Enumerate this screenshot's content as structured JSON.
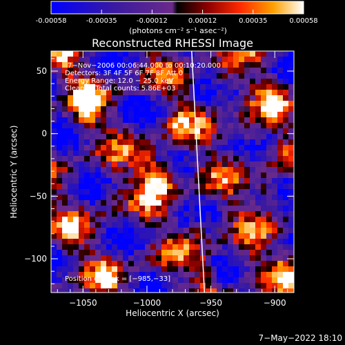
{
  "colorbar": {
    "ticks": [
      "-0.00058",
      "-0.00035",
      "-0.00012",
      "0.00012",
      "0.00035",
      "0.00058"
    ],
    "units": "(photons cm⁻² s⁻¹ asec⁻²)"
  },
  "chart_data": {
    "type": "heatmap",
    "title": "Reconstructed RHESSI Image",
    "xlabel": "Heliocentric X (arcsec)",
    "ylabel": "Heliocentric Y (arcsec)",
    "xlim": [
      -1075,
      -885
    ],
    "ylim": [
      -127,
      66
    ],
    "xticks": [
      -1050,
      -1000,
      -950,
      -900
    ],
    "yticks": [
      50,
      0,
      -50,
      -100
    ],
    "xtick_labels": [
      "−1050",
      "−1000",
      "−950",
      "−900"
    ],
    "ytick_labels": [
      "50",
      "0",
      "−50",
      "−100"
    ],
    "colorscale": {
      "min": -0.00058,
      "max": 0.00058
    },
    "annotations": [
      "7−Nov−2006 00:06:44.000 to 00:10:20.000",
      "Detectors: 3F 4F 5F 6F 7F 8F Att 0",
      "Energy Range: 12.0 − 25.0 keV",
      "Clean     Total counts: 5.86E+03"
    ],
    "peak_label": "Position of Peak = [−985,−33]",
    "peak": {
      "x": -985,
      "y": -33
    },
    "limb_line": [
      [
        -965,
        66
      ],
      [
        -955,
        -127
      ]
    ],
    "blobs": [
      {
        "x": -1048,
        "y": 18,
        "v": 1.0
      },
      {
        "x": -995,
        "y": -38,
        "v": 0.95
      },
      {
        "x": -985,
        "y": -33,
        "v": 1.0
      },
      {
        "x": -1000,
        "y": -20,
        "v": 0.7
      },
      {
        "x": -905,
        "y": -45,
        "v": 0.95
      },
      {
        "x": -920,
        "y": 0,
        "v": 0.85
      },
      {
        "x": -900,
        "y": 20,
        "v": 0.75
      },
      {
        "x": -940,
        "y": 40,
        "v": 0.7
      },
      {
        "x": -925,
        "y": -100,
        "v": 0.7
      },
      {
        "x": -960,
        "y": -75,
        "v": 0.65
      },
      {
        "x": -1060,
        "y": -80,
        "v": 0.6
      },
      {
        "x": -1030,
        "y": -115,
        "v": 0.55
      },
      {
        "x": -1065,
        "y": 55,
        "v": 0.6
      },
      {
        "x": -1030,
        "y": -50,
        "v": 0.5
      },
      {
        "x": -975,
        "y": 5,
        "v": 0.55
      },
      {
        "x": -890,
        "y": -110,
        "v": 0.7
      },
      {
        "x": -1045,
        "y": 30,
        "v": 0.7
      },
      {
        "x": -955,
        "y": -110,
        "v": 0.5
      }
    ]
  },
  "footer": {
    "date": "7−May−2022 18:10"
  }
}
